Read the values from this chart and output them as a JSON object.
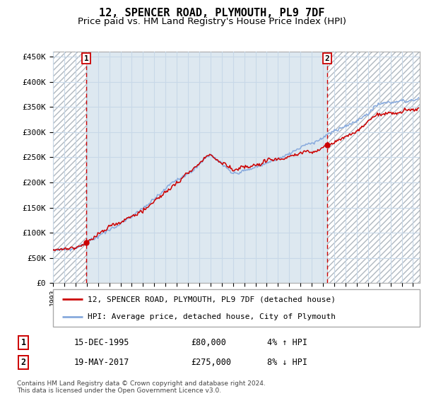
{
  "title": "12, SPENCER ROAD, PLYMOUTH, PL9 7DF",
  "subtitle": "Price paid vs. HM Land Registry's House Price Index (HPI)",
  "ylim": [
    0,
    460000
  ],
  "yticks": [
    0,
    50000,
    100000,
    150000,
    200000,
    250000,
    300000,
    350000,
    400000,
    450000
  ],
  "xlim_start": 1993.0,
  "xlim_end": 2025.6,
  "sale1": {
    "date_num": 1995.96,
    "price": 80000,
    "label": "1",
    "date_str": "15-DEC-1995",
    "price_str": "£80,000",
    "hpi_str": "4% ↑ HPI"
  },
  "sale2": {
    "date_num": 2017.38,
    "price": 275000,
    "label": "2",
    "date_str": "19-MAY-2017",
    "price_str": "£275,000",
    "hpi_str": "8% ↓ HPI"
  },
  "legend1": "12, SPENCER ROAD, PLYMOUTH, PL9 7DF (detached house)",
  "legend2": "HPI: Average price, detached house, City of Plymouth",
  "footnote": "Contains HM Land Registry data © Crown copyright and database right 2024.\nThis data is licensed under the Open Government Licence v3.0.",
  "line_color_property": "#cc0000",
  "line_color_hpi": "#88aadd",
  "dashed_line_color": "#cc0000",
  "grid_color": "#c8d8e8",
  "bg_color": "#dde8f0",
  "hatch_color": "#b0b8c0",
  "title_fontsize": 11,
  "subtitle_fontsize": 9.5,
  "tick_fontsize": 7,
  "legend_fontsize": 8,
  "annotation_fontsize": 8.5
}
